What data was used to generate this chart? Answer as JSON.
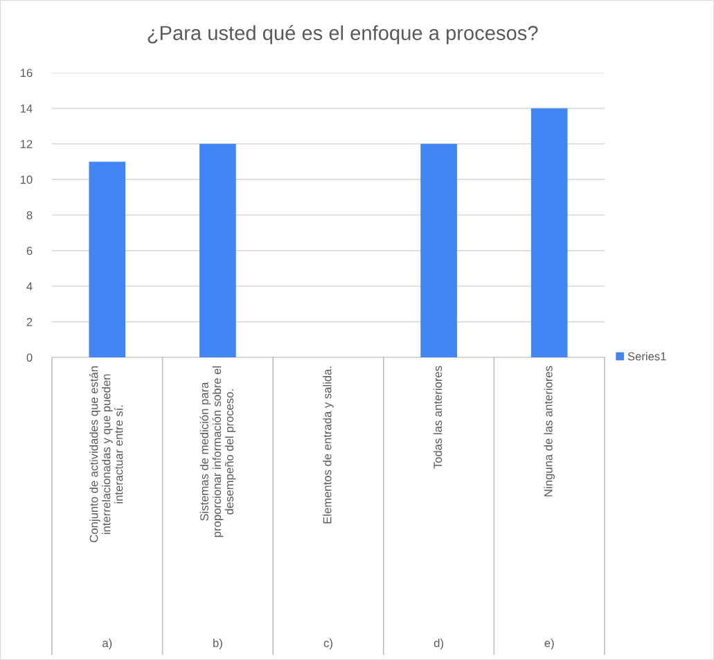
{
  "chart_data": {
    "type": "bar",
    "title": "¿Para usted qué es el enfoque a procesos?",
    "categories": [
      "Conjunto de actividades que están\ninterrelacionadas y que pueden\ninteractuar entre sí.",
      "Sistemas de medición para\nproporcionar información sobre el\ndesempeño del proceso.",
      "Elementos de entrada y salida.",
      "Todas las anteriores",
      "Ninguna de las anteriores"
    ],
    "annotations": [
      "a)",
      "b)",
      "c)",
      "d)",
      "e)"
    ],
    "series": [
      {
        "name": "Series1",
        "color": "#4285f4",
        "values": [
          11,
          12,
          0,
          12,
          14
        ]
      }
    ],
    "ylim": [
      0,
      16
    ],
    "yticks": [
      0,
      2,
      4,
      6,
      8,
      10,
      12,
      14,
      16
    ],
    "grid": "y",
    "legend": "right"
  }
}
